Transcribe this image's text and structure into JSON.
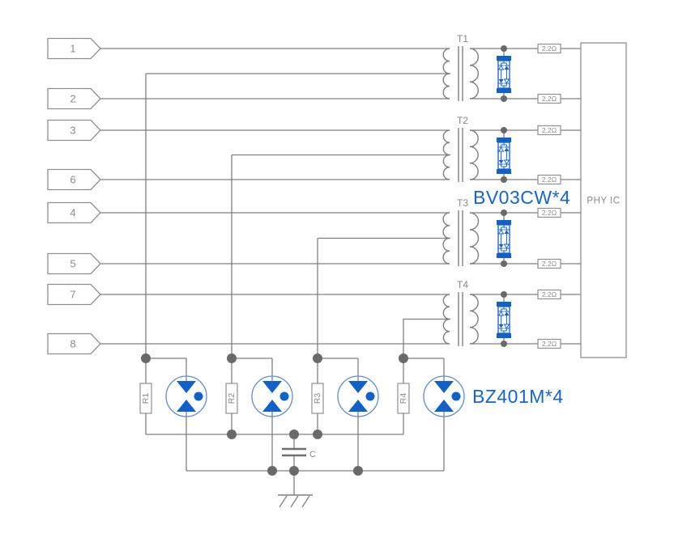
{
  "diagram": {
    "pins": [
      "1",
      "2",
      "3",
      "6",
      "4",
      "5",
      "7",
      "8"
    ],
    "transformers": [
      "T1",
      "T2",
      "T3",
      "T4"
    ],
    "series_resistor_value": "2.2Ω",
    "phy_label": "PHY IC",
    "tvs_array_label": "BV03CW*4",
    "gdt_array_label": "BZ401M*4",
    "bottom_resistors": [
      "R1",
      "R2",
      "R3",
      "R4"
    ],
    "capacitor_label": "C"
  },
  "colors": {
    "wire": "#7f7f7f",
    "box_stroke": "#8f8f8f",
    "text_gray": "#8a8a8a",
    "dot": "#696969",
    "blue": "#1061cc",
    "blue_light": "#5b8dd9",
    "label_blue": "#1465d2",
    "background": "#ffffff"
  }
}
